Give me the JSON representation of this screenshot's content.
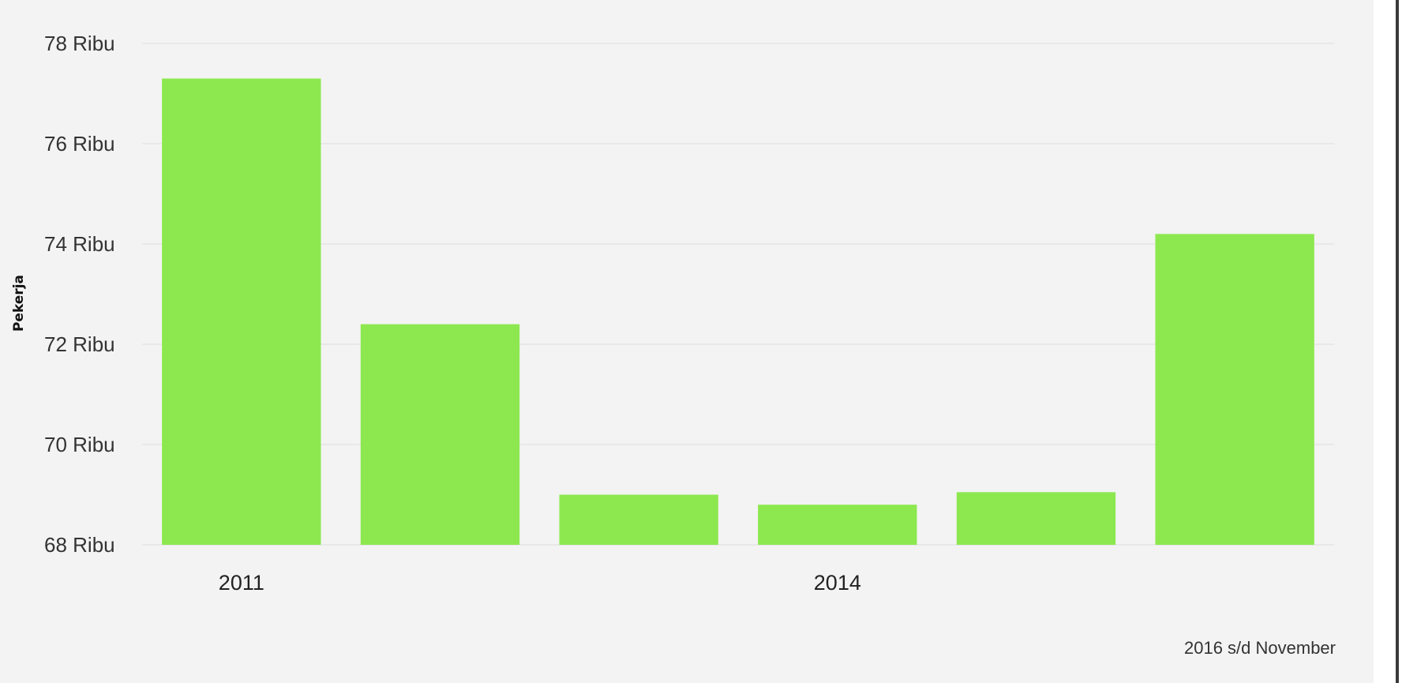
{
  "chart_data": {
    "type": "bar",
    "title": "",
    "xlabel": "",
    "ylabel": "Pekerja",
    "categories": [
      "2011",
      "",
      "",
      "2014",
      "",
      ""
    ],
    "values": [
      77300,
      72400,
      69000,
      68800,
      69050,
      74200
    ],
    "ylim": [
      68000,
      78000
    ],
    "yticks": [
      {
        "value": 68000,
        "label": "68 Ribu"
      },
      {
        "value": 70000,
        "label": "70 Ribu"
      },
      {
        "value": 72000,
        "label": "72 Ribu"
      },
      {
        "value": 74000,
        "label": "74 Ribu"
      },
      {
        "value": 76000,
        "label": "76 Ribu"
      },
      {
        "value": 78000,
        "label": "78 Ribu"
      }
    ],
    "grid": true,
    "bar_color": "#8ce84e",
    "annotations": [
      "2016 s/d November"
    ]
  }
}
